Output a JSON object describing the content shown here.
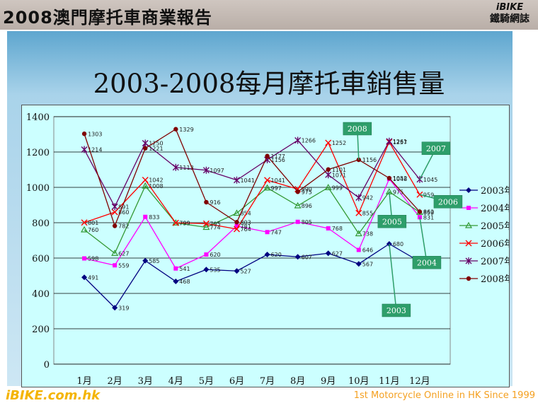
{
  "header": {
    "title": "2008澳門摩托車商業報告",
    "brand_line1": "iBIKE",
    "brand_line2": "鐵騎網誌"
  },
  "slide": {
    "title": "2003-2008每月摩托車銷售量"
  },
  "footer": {
    "logo": "iBIKE.com.hk",
    "tagline": "1st  Motorcycle Online in HK Since 1999"
  },
  "chart_data": {
    "type": "line",
    "title": "",
    "xlabel": "",
    "ylabel": "",
    "ylim": [
      0,
      1400
    ],
    "yticks": [
      "0",
      "200",
      "400",
      "600",
      "800",
      "1000",
      "1200",
      "1400"
    ],
    "grid": true,
    "legend_position": "right",
    "categories": [
      "1月",
      "2月",
      "3月",
      "4月",
      "5月",
      "6月",
      "7月",
      "8月",
      "9月",
      "10月",
      "11月",
      "12月"
    ],
    "series": [
      {
        "name": "2003年",
        "color": "#000080",
        "marker": "diamond",
        "values": [
          491,
          319,
          585,
          468,
          535,
          527,
          620,
          607,
          627,
          567,
          680,
          580
        ],
        "labels": [
          "491",
          "319",
          "585",
          "468",
          "535",
          "527",
          "620",
          "607",
          "627",
          "567",
          "680",
          "580"
        ]
      },
      {
        "name": "2004年",
        "color": "#ff00ff",
        "marker": "square",
        "values": [
          598,
          559,
          833,
          541,
          620,
          781,
          747,
          805,
          768,
          646,
          1048,
          831
        ],
        "labels": [
          "598",
          "559",
          "833",
          "541",
          "620",
          "781",
          "747",
          "805",
          "768",
          "646",
          "1048",
          "831"
        ]
      },
      {
        "name": "2005年",
        "color": "#339933",
        "marker": "triangle",
        "values": [
          760,
          627,
          1008,
          799,
          774,
          854,
          997,
          896,
          999,
          738,
          975,
          859
        ],
        "labels": [
          "760",
          "627",
          "1008",
          "799",
          "774",
          "854",
          "997",
          "896",
          "999",
          "738",
          "975",
          "859"
        ]
      },
      {
        "name": "2006年",
        "color": "#ff0000",
        "marker": "x",
        "values": [
          801,
          860,
          1042,
          799,
          795,
          764,
          1041,
          990,
          1252,
          855,
          1257,
          959
        ],
        "labels": [
          "801",
          "860",
          "1042",
          "799",
          "795",
          "764",
          "1041",
          "990",
          "1252",
          "855",
          "1257",
          "959"
        ]
      },
      {
        "name": "2007年",
        "color": "#660066",
        "marker": "star",
        "values": [
          1214,
          891,
          1250,
          1113,
          1097,
          1041,
          1156,
          1266,
          1071,
          942,
          1261,
          1045
        ],
        "labels": [
          "1214",
          "891",
          "1250",
          "1113",
          "1097",
          "1041",
          "1156",
          "1266",
          "1071",
          "942",
          "1261",
          "1045"
        ]
      },
      {
        "name": "2008年",
        "color": "#800000",
        "marker": "circle",
        "values": [
          1303,
          782,
          1221,
          1329,
          916,
          803,
          1177,
          975,
          1101,
          1156,
          1052,
          862
        ],
        "labels": [
          "1303",
          "782",
          "1221",
          "1329",
          "916",
          "803",
          "1177",
          "975",
          "1101",
          "1156",
          "1052",
          "862"
        ]
      }
    ],
    "annotations": [
      {
        "text": "2008",
        "series": "2008年",
        "index": 9
      },
      {
        "text": "2007",
        "series": "2007年",
        "index": 11
      },
      {
        "text": "2006",
        "series": "2006年",
        "index": 11
      },
      {
        "text": "2005",
        "series": "2005年",
        "index": 10
      },
      {
        "text": "2004",
        "series": "2004年",
        "index": 11
      },
      {
        "text": "2003",
        "series": "2003年",
        "index": 10
      }
    ],
    "annotation_color": "#2e9e6a"
  }
}
